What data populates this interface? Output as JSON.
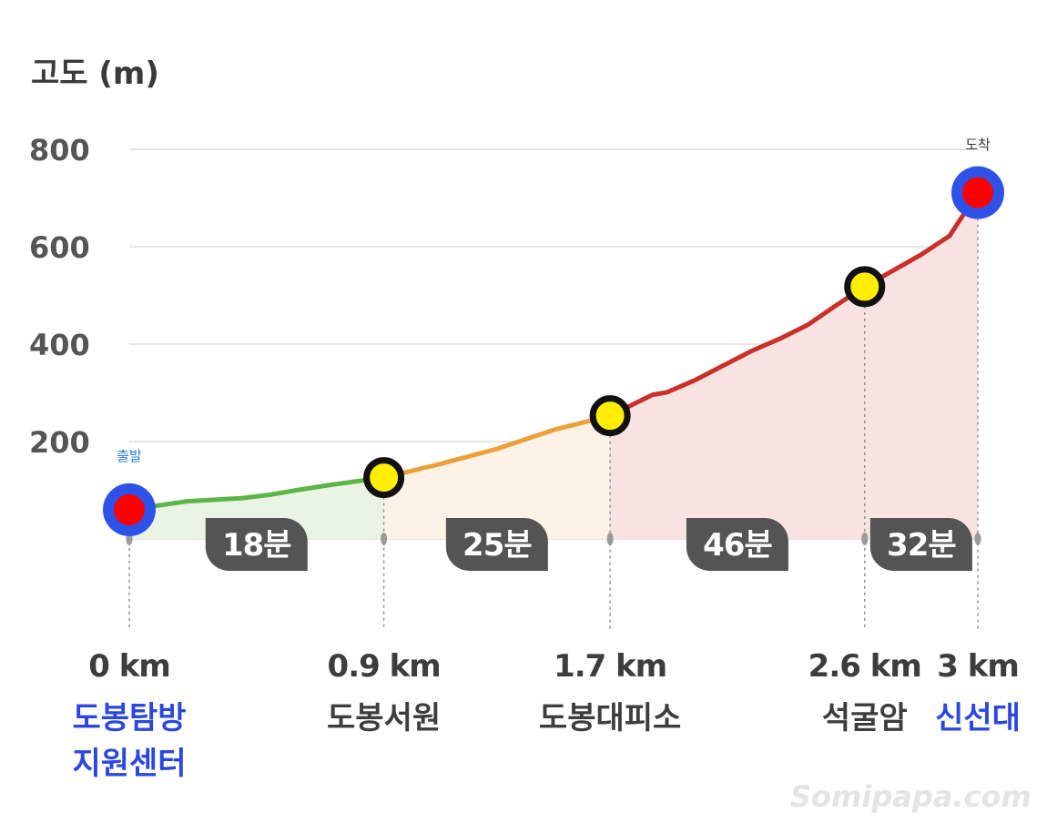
{
  "chart_data": {
    "type": "area",
    "ylabel": "고도 (m)",
    "yticks": [
      200,
      400,
      600,
      800
    ],
    "ylim": [
      0,
      800
    ],
    "xlim": [
      0,
      3
    ],
    "grid": true,
    "profile": [
      {
        "x": 0.0,
        "y": 60
      },
      {
        "x": 0.2,
        "y": 77
      },
      {
        "x": 0.4,
        "y": 84
      },
      {
        "x": 0.5,
        "y": 91
      },
      {
        "x": 0.6,
        "y": 101
      },
      {
        "x": 0.7,
        "y": 110
      },
      {
        "x": 0.9,
        "y": 126
      },
      {
        "x": 1.1,
        "y": 154
      },
      {
        "x": 1.3,
        "y": 185
      },
      {
        "x": 1.5,
        "y": 224
      },
      {
        "x": 1.7,
        "y": 253
      },
      {
        "x": 1.85,
        "y": 296
      },
      {
        "x": 1.9,
        "y": 301
      },
      {
        "x": 2.0,
        "y": 326
      },
      {
        "x": 2.2,
        "y": 386
      },
      {
        "x": 2.3,
        "y": 411
      },
      {
        "x": 2.4,
        "y": 440
      },
      {
        "x": 2.5,
        "y": 480
      },
      {
        "x": 2.6,
        "y": 518
      },
      {
        "x": 2.8,
        "y": 584
      },
      {
        "x": 2.9,
        "y": 622
      },
      {
        "x": 3.0,
        "y": 711
      }
    ],
    "segments": [
      {
        "from": 0.0,
        "to": 0.9,
        "color": "#5cb548",
        "fill": "#e9f4e5",
        "duration": "18분"
      },
      {
        "from": 0.9,
        "to": 1.7,
        "color": "#eba13a",
        "fill": "#fdf2e6",
        "duration": "25분"
      },
      {
        "from": 1.7,
        "to": 2.6,
        "color": "#c9302c",
        "fill": "#f8e3e1",
        "duration": "46분"
      },
      {
        "from": 2.6,
        "to": 3.0,
        "color": "#c9302c",
        "fill": "#f8e3e1",
        "duration": "32분"
      }
    ],
    "waypoints": [
      {
        "x": 0.0,
        "y": 60,
        "km": "0 km",
        "name": [
          "도봉탐방",
          "지원센터"
        ],
        "kind": "endpoint",
        "note": "출발"
      },
      {
        "x": 0.9,
        "y": 126,
        "km": "0.9 km",
        "name": [
          "도봉서원"
        ],
        "kind": "mid"
      },
      {
        "x": 1.7,
        "y": 253,
        "km": "1.7 km",
        "name": [
          "도봉대피소"
        ],
        "kind": "mid"
      },
      {
        "x": 2.6,
        "y": 518,
        "km": "2.6 km",
        "name": [
          "석굴암"
        ],
        "kind": "mid"
      },
      {
        "x": 3.0,
        "y": 711,
        "km": "3 km",
        "name": [
          "신선대"
        ],
        "kind": "endpoint",
        "note": "도착"
      }
    ]
  },
  "colors": {
    "endpoint_ring": "#2e52e8",
    "endpoint_core": "#ff0000",
    "midpoint_fill": "#ffee00",
    "midpoint_ring": "#111111",
    "endpoint_label": "#2b47e0",
    "mid_label": "#3d3d3d",
    "badge_bg": "#545454"
  },
  "watermark": "Somipapa.com"
}
